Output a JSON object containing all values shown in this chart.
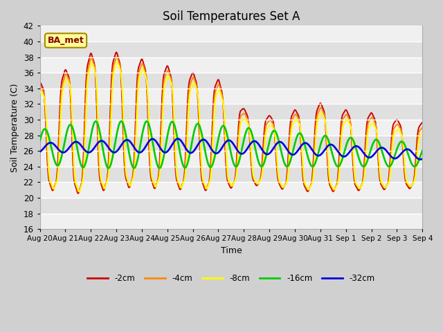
{
  "title": "Soil Temperatures Set A",
  "xlabel": "Time",
  "ylabel": "Soil Temperature (C)",
  "ylim": [
    16,
    42
  ],
  "yticks": [
    16,
    18,
    20,
    22,
    24,
    26,
    28,
    30,
    32,
    34,
    36,
    38,
    40,
    42
  ],
  "xtick_labels": [
    "Aug 20",
    "Aug 21",
    "Aug 22",
    "Aug 23",
    "Aug 24",
    "Aug 25",
    "Aug 26",
    "Aug 27",
    "Aug 28",
    "Aug 29",
    "Aug 30",
    "Aug 31",
    "Sep 1",
    "Sep 2",
    "Sep 3",
    "Sep 4"
  ],
  "colors": {
    "-2cm": "#cc0000",
    "-4cm": "#ff8800",
    "-8cm": "#ffff00",
    "-16cm": "#00cc00",
    "-32cm": "#0000dd"
  },
  "annotation_text": "BA_met",
  "annotation_bg": "#ffff99",
  "annotation_border": "#aa8800",
  "annotation_text_color": "#880000",
  "fig_facecolor": "#d0d0d0",
  "plot_facecolor": "#ffffff",
  "stripe_color_light": "#f0f0f0",
  "stripe_color_dark": "#e0e0e0",
  "linewidth": 1.4,
  "n_days": 15,
  "n_points": 720
}
